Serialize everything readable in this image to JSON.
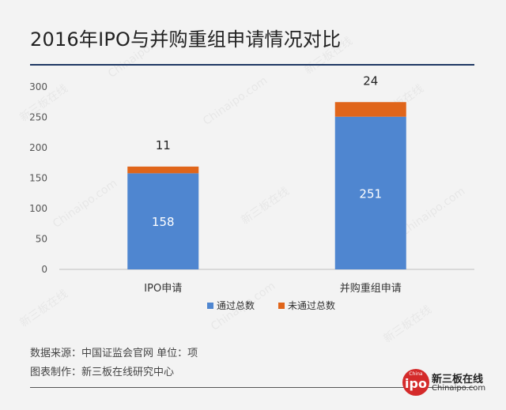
{
  "title": "2016年IPO与并购重组申请情况对比",
  "chart_data": {
    "type": "bar",
    "stacked": true,
    "categories": [
      "IPO申请",
      "并购重组申请"
    ],
    "series": [
      {
        "name": "通过总数",
        "values": [
          158,
          251
        ],
        "color": "#4f86d0"
      },
      {
        "name": "未通过总数",
        "values": [
          11,
          24
        ],
        "color": "#e0651a"
      }
    ],
    "ylim": [
      0,
      300
    ],
    "yticks": [
      0,
      50,
      100,
      150,
      200,
      250,
      300
    ],
    "legend_position": "bottom"
  },
  "footer": {
    "source": "数据来源：中国证监会官网  单位：项",
    "credit": "图表制作：新三板在线研究中心"
  },
  "logo": {
    "badge_small": "China",
    "badge_big": "ipo",
    "name_cn": "新三板在线",
    "name_en": "Chinaipo.com"
  },
  "watermarks": [
    "新三板在线",
    "Chinaipo.com"
  ]
}
